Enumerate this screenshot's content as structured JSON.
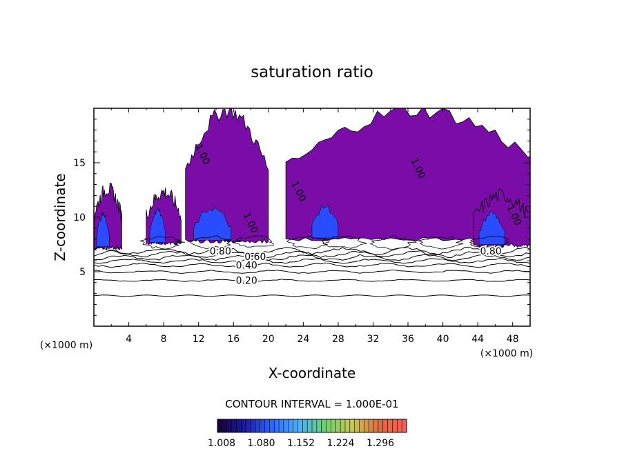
{
  "chart_data": {
    "type": "contour",
    "title": "saturation ratio",
    "xlabel": "X-coordinate",
    "ylabel": "Z-coordinate",
    "x_unit": "(×1000 m)",
    "z_unit": "(×1000 m)",
    "xlim": [
      0,
      50
    ],
    "ylim": [
      0,
      20
    ],
    "x_ticks": [
      4,
      8,
      12,
      16,
      20,
      24,
      28,
      32,
      36,
      40,
      44,
      48
    ],
    "y_ticks": [
      5,
      10,
      15
    ],
    "contour_interval_text": "CONTOUR INTERVAL = 1.000E-01",
    "contour_levels": [
      0.1,
      0.2,
      0.3,
      0.4,
      0.5,
      0.6,
      0.7,
      0.8,
      0.9,
      1.0
    ],
    "contour_lines_z": [
      {
        "level": 0.1,
        "z": 2.8
      },
      {
        "level": 0.2,
        "z": 4.2
      },
      {
        "level": 0.3,
        "z": 5.0
      },
      {
        "level": 0.4,
        "z": 5.6
      },
      {
        "level": 0.5,
        "z": 6.0
      },
      {
        "level": 0.6,
        "z": 6.3
      },
      {
        "level": 0.7,
        "z": 6.6
      },
      {
        "level": 0.8,
        "z": 6.9
      }
    ],
    "contour_labels": [
      {
        "text": "0.20",
        "x": 17.5,
        "z": 4.2
      },
      {
        "text": "0.40",
        "x": 17.5,
        "z": 5.6
      },
      {
        "text": "0.60",
        "x": 18.5,
        "z": 6.4
      },
      {
        "text": "0.80",
        "x": 14.5,
        "z": 6.9
      },
      {
        "text": "0.80",
        "x": 45.5,
        "z": 6.9
      },
      {
        "text": "1.00",
        "x": 12.5,
        "z": 15.8
      },
      {
        "text": "1.00",
        "x": 18.0,
        "z": 9.5
      },
      {
        "text": "1.00",
        "x": 23.5,
        "z": 12.4
      },
      {
        "text": "1.00",
        "x": 37.2,
        "z": 14.5
      },
      {
        "text": "1.00",
        "x": 48.2,
        "z": 10.2
      }
    ],
    "supersaturated_regions": [
      {
        "x": [
          0,
          3.2
        ],
        "z": [
          7.2,
          12.6
        ]
      },
      {
        "x": [
          6.0,
          10.0
        ],
        "z": [
          7.6,
          12.3
        ]
      },
      {
        "x": [
          10.5,
          20.0
        ],
        "z": [
          7.8,
          19.8
        ]
      },
      {
        "x": [
          22.0,
          52.0
        ],
        "z": [
          8.0,
          19.8
        ]
      },
      {
        "x": [
          43.5,
          50.0
        ],
        "z": [
          7.4,
          12.0
        ]
      }
    ],
    "colorbar": {
      "min": 1.008,
      "max": 1.296,
      "tick_labels": [
        "1.008",
        "1.080",
        "1.152",
        "1.224",
        "1.296"
      ],
      "colors": [
        "#1a0033",
        "#1a1aa6",
        "#2c64ff",
        "#48b0ff",
        "#6ed26e",
        "#c8c850",
        "#e06a3c",
        "#ff5a5a"
      ]
    },
    "fill_color_supersat": "#7a0ca8",
    "fill_color_high": "#2a4cff"
  }
}
